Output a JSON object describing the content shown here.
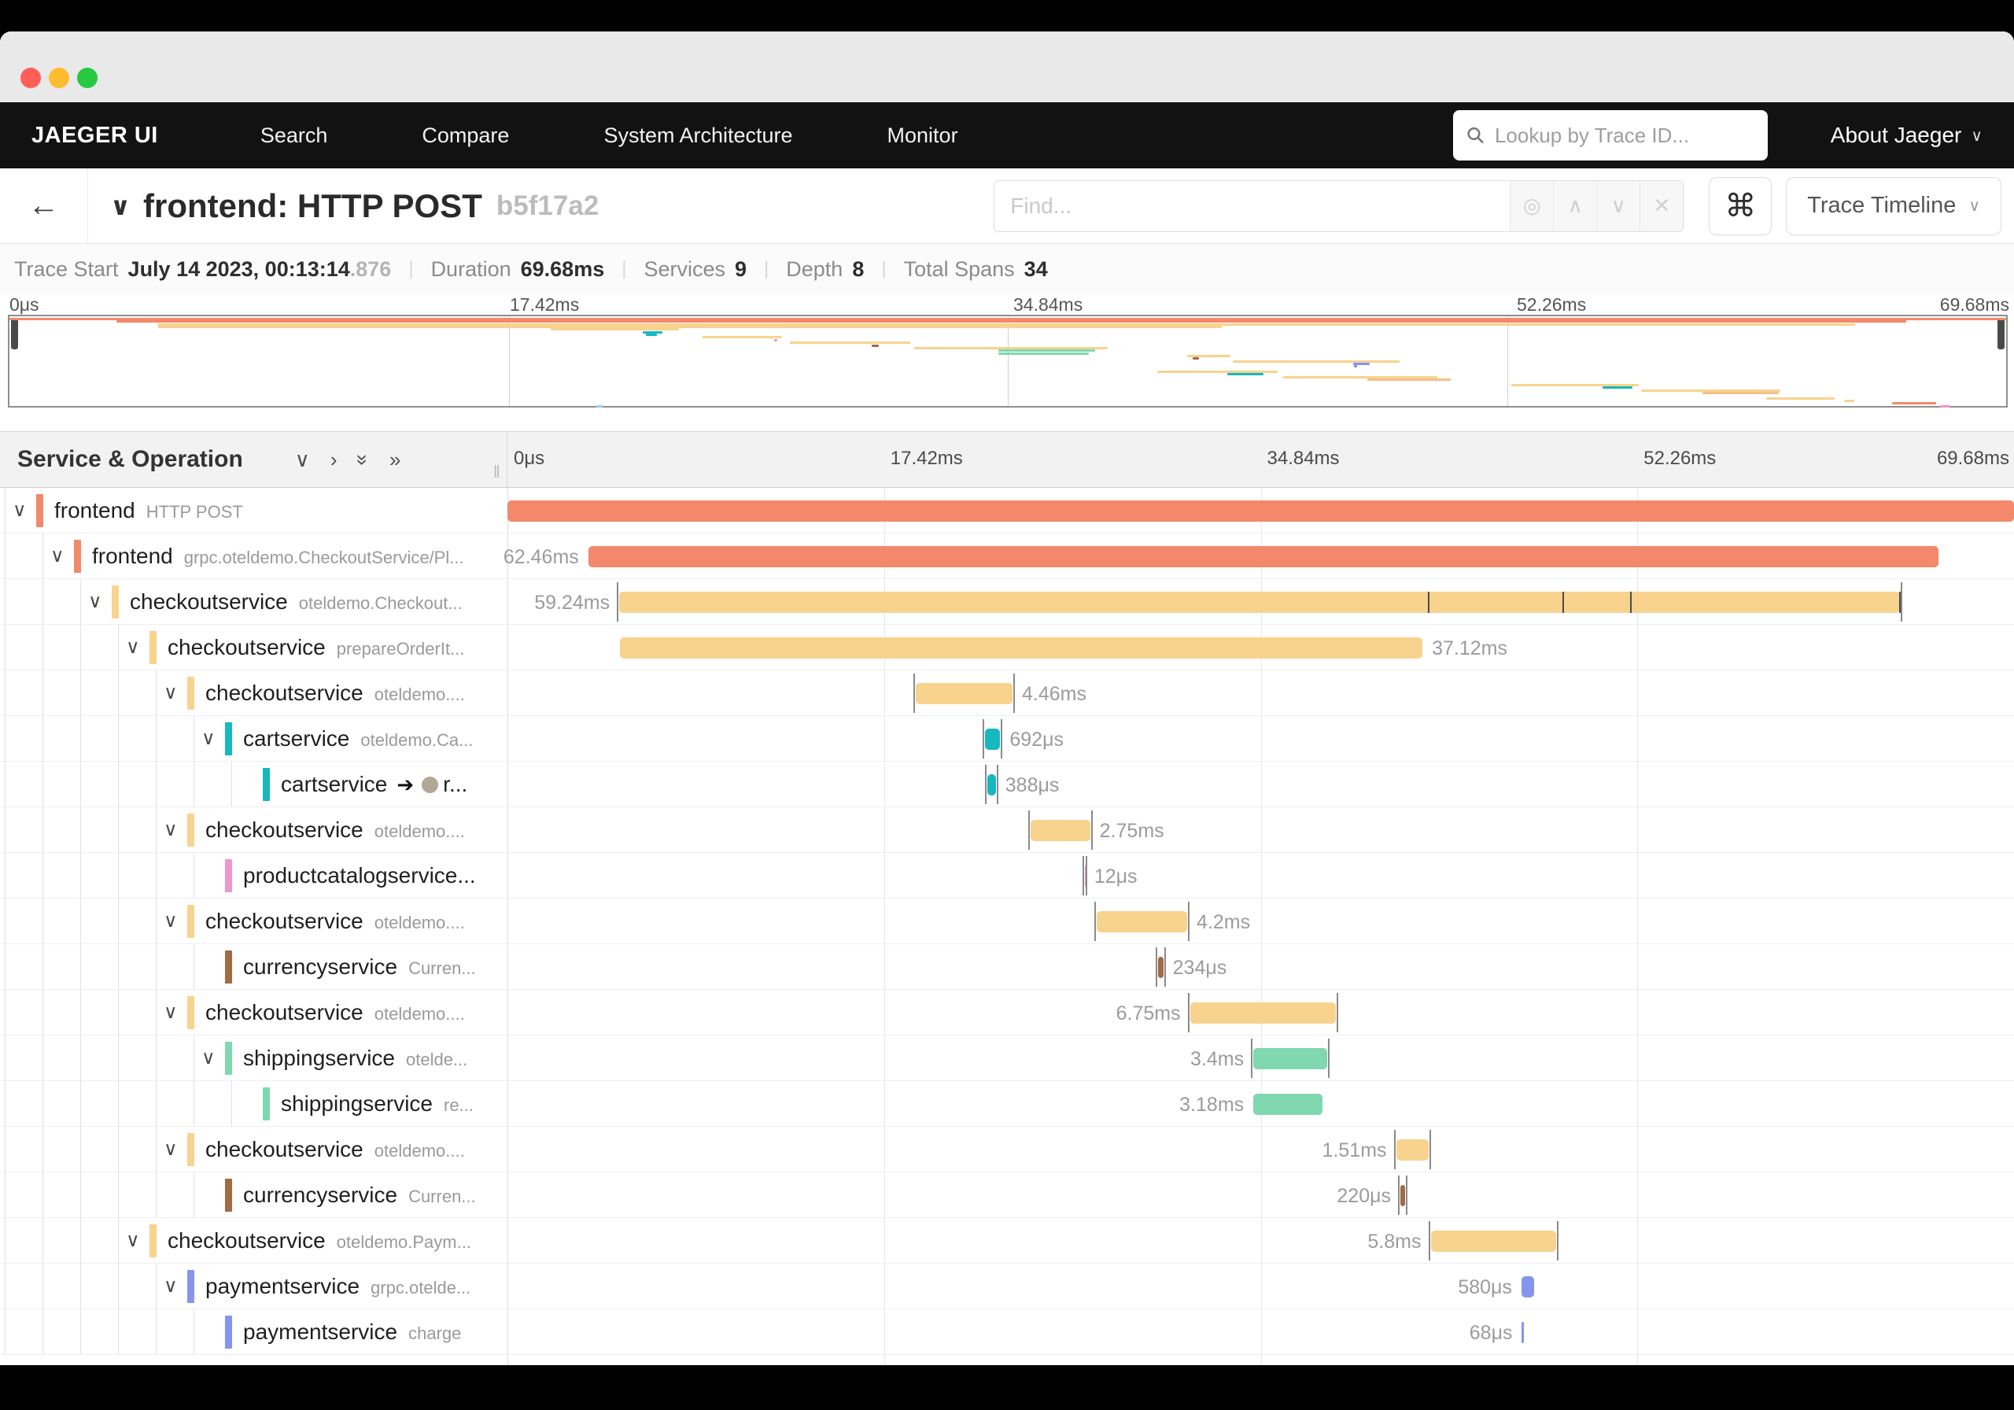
{
  "window": {
    "traffic_lights": [
      "#FF5F57",
      "#FEBC2E",
      "#28C840"
    ]
  },
  "navbar": {
    "brand": "JAEGER UI",
    "items": [
      "Search",
      "Compare",
      "System Architecture",
      "Monitor"
    ],
    "lookup_placeholder": "Lookup by Trace ID...",
    "about_label": "About Jaeger"
  },
  "trace_header": {
    "back_icon": "←",
    "title": "frontend: HTTP POST",
    "trace_id": "b5f17a2",
    "find_placeholder": "Find...",
    "command_glyph": "⌘",
    "view_selector": "Trace Timeline"
  },
  "stats": {
    "trace_start_label": "Trace Start",
    "trace_start_value": "July 14 2023, 00:13:14",
    "trace_start_ms": ".876",
    "duration_label": "Duration",
    "duration_value": "69.68ms",
    "services_label": "Services",
    "services_value": "9",
    "depth_label": "Depth",
    "depth_value": "8",
    "total_spans_label": "Total Spans",
    "total_spans_value": "34"
  },
  "timeline": {
    "left_header": "Service & Operation",
    "total_ms": 69.68,
    "ruler_ticks": [
      "0μs",
      "17.42ms",
      "34.84ms",
      "52.26ms",
      "69.68ms"
    ],
    "ruler_positions_pct": [
      0,
      25,
      50,
      75,
      100
    ]
  },
  "service_colors": {
    "frontend": "#F4886A",
    "checkoutservice": "#F7D38E",
    "cartservice": "#17B8BE",
    "productcatalogservice": "#EC97CD",
    "currencyservice": "#A06B45",
    "shippingservice": "#7FD8B0",
    "paymentservice": "#8595EE"
  },
  "spans": [
    {
      "service": "frontend",
      "operation": "HTTP POST",
      "depth": 0,
      "leaf": false,
      "start_ms": 0,
      "duration_ms": 69.68,
      "label": "",
      "label_side": "none",
      "ticks": false
    },
    {
      "service": "frontend",
      "operation": "grpc.oteldemo.CheckoutService/Pl...",
      "depth": 1,
      "leaf": false,
      "start_ms": 3.74,
      "duration_ms": 62.46,
      "label": "62.46ms",
      "label_side": "left",
      "ticks": false
    },
    {
      "service": "checkoutservice",
      "operation": "oteldemo.Checkout...",
      "depth": 2,
      "leaf": false,
      "start_ms": 5.17,
      "duration_ms": 59.24,
      "label": "59.24ms",
      "label_side": "left",
      "ticks": true,
      "log_markers_pct": [
        61.1,
        70.0,
        74.5,
        92.4
      ]
    },
    {
      "service": "checkoutservice",
      "operation": "prepareOrderIt...",
      "depth": 3,
      "leaf": false,
      "start_ms": 5.2,
      "duration_ms": 37.12,
      "label": "37.12ms",
      "label_side": "right",
      "ticks": false
    },
    {
      "service": "checkoutservice",
      "operation": "oteldemo....",
      "depth": 4,
      "leaf": false,
      "start_ms": 18.9,
      "duration_ms": 4.46,
      "label": "4.46ms",
      "label_side": "right",
      "ticks": true
    },
    {
      "service": "cartservice",
      "operation": "oteldemo.Ca...",
      "depth": 5,
      "leaf": false,
      "start_ms": 22.1,
      "duration_ms": 0.692,
      "label": "692μs",
      "label_side": "right",
      "ticks": true
    },
    {
      "service": "cartservice",
      "operation": "r...",
      "depth": 6,
      "leaf": true,
      "ref_arrow": true,
      "start_ms": 22.2,
      "duration_ms": 0.388,
      "label": "388μs",
      "label_side": "right",
      "ticks": true
    },
    {
      "service": "checkoutservice",
      "operation": "oteldemo....",
      "depth": 4,
      "leaf": false,
      "start_ms": 24.2,
      "duration_ms": 2.75,
      "label": "2.75ms",
      "label_side": "right",
      "ticks": true
    },
    {
      "service": "productcatalogservice...",
      "operation": "",
      "depth": 5,
      "leaf": true,
      "start_ms": 26.69,
      "duration_ms": 0.012,
      "label": "12μs",
      "label_side": "right",
      "ticks": true
    },
    {
      "service": "checkoutservice",
      "operation": "oteldemo....",
      "depth": 4,
      "leaf": false,
      "start_ms": 27.24,
      "duration_ms": 4.2,
      "label": "4.2ms",
      "label_side": "right",
      "ticks": true
    },
    {
      "service": "currencyservice",
      "operation": "Curren...",
      "depth": 5,
      "leaf": true,
      "start_ms": 30.1,
      "duration_ms": 0.234,
      "label": "234μs",
      "label_side": "right",
      "ticks": true
    },
    {
      "service": "checkoutservice",
      "operation": "oteldemo....",
      "depth": 4,
      "leaf": false,
      "start_ms": 31.57,
      "duration_ms": 6.75,
      "label": "6.75ms",
      "label_side": "left",
      "ticks": true
    },
    {
      "service": "shippingservice",
      "operation": "otelde...",
      "depth": 5,
      "leaf": false,
      "start_ms": 34.5,
      "duration_ms": 3.4,
      "label": "3.4ms",
      "label_side": "left",
      "ticks": true
    },
    {
      "service": "shippingservice",
      "operation": "re...",
      "depth": 6,
      "leaf": true,
      "start_ms": 34.5,
      "duration_ms": 3.18,
      "label": "3.18ms",
      "label_side": "left",
      "ticks": false
    },
    {
      "service": "checkoutservice",
      "operation": "oteldemo....",
      "depth": 4,
      "leaf": false,
      "start_ms": 41.1,
      "duration_ms": 1.51,
      "label": "1.51ms",
      "label_side": "left",
      "ticks": true
    },
    {
      "service": "currencyservice",
      "operation": "Curren...",
      "depth": 5,
      "leaf": true,
      "start_ms": 41.3,
      "duration_ms": 0.22,
      "label": "220μs",
      "label_side": "left",
      "ticks": true
    },
    {
      "service": "checkoutservice",
      "operation": "oteldemo.Paym...",
      "depth": 3,
      "leaf": false,
      "start_ms": 42.7,
      "duration_ms": 5.8,
      "label": "5.8ms",
      "label_side": "left",
      "ticks": true
    },
    {
      "service": "paymentservice",
      "operation": "grpc.otelde...",
      "depth": 4,
      "leaf": false,
      "start_ms": 46.9,
      "duration_ms": 0.58,
      "label": "580μs",
      "label_side": "left",
      "ticks": false
    },
    {
      "service": "paymentservice",
      "operation": "charge",
      "depth": 5,
      "leaf": true,
      "start_ms": 46.92,
      "duration_ms": 0.068,
      "label": "68μs",
      "label_side": "left",
      "ticks": false
    }
  ],
  "minimap": {
    "total_rows": 34,
    "extra_spans": [
      {
        "row": 20,
        "start_pct": 57.5,
        "width_pct": 6.0,
        "color": "#F7D38E"
      },
      {
        "row": 21,
        "start_pct": 61.0,
        "width_pct": 1.8,
        "color": "#17B8BE"
      },
      {
        "row": 22,
        "start_pct": 63.8,
        "width_pct": 7.7,
        "color": "#F7D38E"
      },
      {
        "row": 23,
        "start_pct": 68.0,
        "width_pct": 4.2,
        "color": "#F9BD8B"
      },
      {
        "row": 25,
        "start_pct": 75.2,
        "width_pct": 6.4,
        "color": "#F7D38E"
      },
      {
        "row": 26,
        "start_pct": 79.8,
        "width_pct": 1.5,
        "color": "#17B8BE"
      },
      {
        "row": 27,
        "start_pct": 81.7,
        "width_pct": 7.0,
        "color": "#F7D38E"
      },
      {
        "row": 28,
        "start_pct": 84.8,
        "width_pct": 3.8,
        "color": "#F9BD8B"
      },
      {
        "row": 30,
        "start_pct": 88.0,
        "width_pct": 3.4,
        "color": "#F7D38E"
      },
      {
        "row": 31,
        "start_pct": 91.9,
        "width_pct": 0.5,
        "color": "#F7D38E"
      },
      {
        "row": 32,
        "start_pct": 94.3,
        "width_pct": 2.2,
        "color": "#F4886A"
      },
      {
        "row": 33,
        "start_pct": 96.7,
        "width_pct": 0.5,
        "color": "#EC97CD"
      },
      {
        "row": 33,
        "start_pct": 29.4,
        "width_pct": 0.3,
        "color": "#9FC8F2"
      }
    ]
  }
}
